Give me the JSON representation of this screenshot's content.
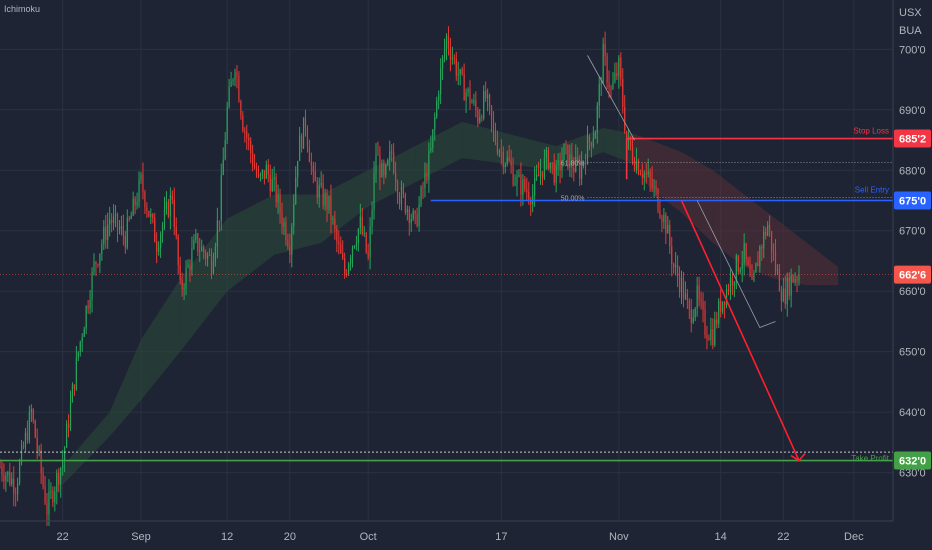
{
  "indicator_label": "Ichimoku",
  "colors": {
    "background": "#1e2433",
    "up": "#27a35a",
    "down": "#e53935",
    "stop_loss": "#f23645",
    "sell_entry": "#2962ff",
    "take_profit": "#43a047",
    "current": "#f4564b",
    "cloud_bull": "#2c4a3a",
    "cloud_bear": "#5a2f36",
    "grid": "#2a3142",
    "axis_text": "#b2b5be"
  },
  "chart_data": {
    "type": "candlestick",
    "ylabel_top": [
      "USX",
      "BUA"
    ],
    "ylim": [
      622,
      707
    ],
    "y_ticks": [
      "630'0",
      "640'0",
      "650'0",
      "660'0",
      "670'0",
      "680'0",
      "690'0",
      "700'0"
    ],
    "y_tick_values": [
      630,
      640,
      650,
      660,
      670,
      680,
      690,
      700
    ],
    "x_ticks": [
      "22",
      "Sep",
      "12",
      "20",
      "Oct",
      "17",
      "Nov",
      "14",
      "22",
      "Dec"
    ],
    "x_tick_days": [
      -9,
      1,
      12,
      20,
      30,
      47,
      62,
      75,
      83,
      92
    ],
    "x_range_days": [
      -17,
      97
    ],
    "levels": {
      "stop_loss": {
        "label": "Stop Loss",
        "value": 685.25,
        "display": "685'2"
      },
      "sell_entry": {
        "label": "Sell Entry",
        "value": 675.0,
        "display": "675'0"
      },
      "take_profit": {
        "label": "Take Profit",
        "value": 632.0,
        "display": "632'0"
      },
      "current": {
        "value": 662.75,
        "display": "662'6"
      }
    },
    "fib_levels": [
      {
        "label": "61.80%",
        "value": 681.3
      },
      {
        "label": "50.00%",
        "value": 675.5
      }
    ],
    "price_path": [
      [
        -17,
        631
      ],
      [
        -15,
        628
      ],
      [
        -13,
        640
      ],
      [
        -11,
        624
      ],
      [
        -9,
        632
      ],
      [
        -7,
        650
      ],
      [
        -5,
        664
      ],
      [
        -3,
        672
      ],
      [
        -1,
        669
      ],
      [
        1,
        678
      ],
      [
        3,
        668
      ],
      [
        5,
        676
      ],
      [
        6,
        660
      ],
      [
        8,
        668
      ],
      [
        10,
        665
      ],
      [
        11,
        673
      ],
      [
        12,
        690
      ],
      [
        13,
        698
      ],
      [
        14,
        688
      ],
      [
        15,
        683
      ],
      [
        16,
        678
      ],
      [
        17,
        680
      ],
      [
        18,
        677
      ],
      [
        19,
        672
      ],
      [
        20,
        668
      ],
      [
        21,
        683
      ],
      [
        22,
        688
      ],
      [
        23,
        678
      ],
      [
        24,
        676
      ],
      [
        25,
        674
      ],
      [
        26,
        668
      ],
      [
        27,
        663
      ],
      [
        28,
        668
      ],
      [
        29,
        671
      ],
      [
        30,
        665
      ],
      [
        31,
        683
      ],
      [
        32,
        678
      ],
      [
        33,
        683
      ],
      [
        34,
        676
      ],
      [
        35,
        674
      ],
      [
        36,
        671
      ],
      [
        38,
        683
      ],
      [
        39,
        694
      ],
      [
        40,
        702
      ],
      [
        41,
        698
      ],
      [
        42,
        694
      ],
      [
        43,
        692
      ],
      [
        44,
        689
      ],
      [
        45,
        692
      ],
      [
        46,
        686
      ],
      [
        47,
        683
      ],
      [
        48,
        681
      ],
      [
        49,
        678
      ],
      [
        50,
        677
      ],
      [
        51,
        676
      ],
      [
        52,
        680
      ],
      [
        53,
        682
      ],
      [
        54,
        679
      ],
      [
        55,
        683
      ],
      [
        56,
        681
      ],
      [
        57,
        680
      ],
      [
        58,
        684
      ],
      [
        59,
        687
      ],
      [
        60,
        699
      ],
      [
        61,
        693
      ],
      [
        62,
        697
      ],
      [
        63,
        685
      ],
      [
        64,
        682
      ],
      [
        65,
        680
      ],
      [
        66,
        678
      ],
      [
        67,
        675
      ],
      [
        68,
        671
      ],
      [
        69,
        664
      ],
      [
        70,
        661
      ],
      [
        71,
        656
      ],
      [
        72,
        659
      ],
      [
        73,
        654
      ],
      [
        74,
        653
      ],
      [
        75,
        658
      ],
      [
        76,
        661
      ],
      [
        77,
        664
      ],
      [
        78,
        666
      ],
      [
        79,
        660
      ],
      [
        80,
        667
      ],
      [
        81,
        671
      ],
      [
        82,
        664
      ],
      [
        83,
        659
      ],
      [
        84,
        662
      ],
      [
        85,
        663
      ]
    ],
    "cloud": [
      [
        -9,
        631,
        628
      ],
      [
        -3,
        640,
        636
      ],
      [
        1,
        652,
        642
      ],
      [
        6,
        662,
        650
      ],
      [
        12,
        672,
        660
      ],
      [
        18,
        676,
        666
      ],
      [
        24,
        676,
        668
      ],
      [
        30,
        680,
        674
      ],
      [
        36,
        684,
        678
      ],
      [
        42,
        688,
        682
      ],
      [
        48,
        686,
        681
      ],
      [
        54,
        684,
        680
      ],
      [
        60,
        687,
        683
      ],
      [
        64,
        686,
        681
      ],
      [
        66,
        685,
        677
      ],
      [
        70,
        683,
        673
      ],
      [
        74,
        680,
        668
      ],
      [
        78,
        676,
        664
      ],
      [
        82,
        672,
        662
      ],
      [
        86,
        668,
        661
      ],
      [
        90,
        664,
        661
      ]
    ],
    "drawings": {
      "zigzag": [
        [
          72,
          675
        ],
        [
          80,
          654
        ],
        [
          82,
          655
        ]
      ],
      "projection": [
        [
          70,
          675
        ],
        [
          85,
          632
        ]
      ],
      "swing_box": [
        [
          63,
          685
        ],
        [
          97,
          685
        ]
      ]
    }
  }
}
